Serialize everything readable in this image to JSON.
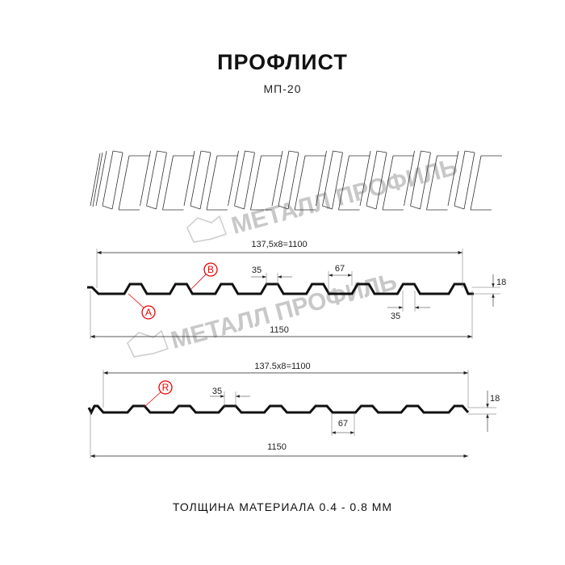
{
  "header": {
    "title": "ПРОФЛИСТ",
    "subtitle": "МП-20"
  },
  "watermark": {
    "text": "МЕТАЛЛ ПРОФИЛЬ",
    "color": "#c8c8c8"
  },
  "profile_top": {
    "pitch_label": "137,5x8=1100",
    "width_label": "1150",
    "top_width": "35",
    "bottom_width": "67",
    "bottom_width_2": "35",
    "height": "18",
    "marker_a": "A",
    "marker_b": "B"
  },
  "profile_bottom": {
    "pitch_label": "137.5x8=1100",
    "width_label": "1150",
    "top_width": "35",
    "bottom_width": "67",
    "height": "18",
    "marker_r": "R"
  },
  "footer": {
    "thickness": "ТОЛЩИНА МАТЕРИАЛА 0.4 - 0.8 ММ"
  },
  "colors": {
    "marker": "#e00000",
    "profile": "#111111"
  }
}
